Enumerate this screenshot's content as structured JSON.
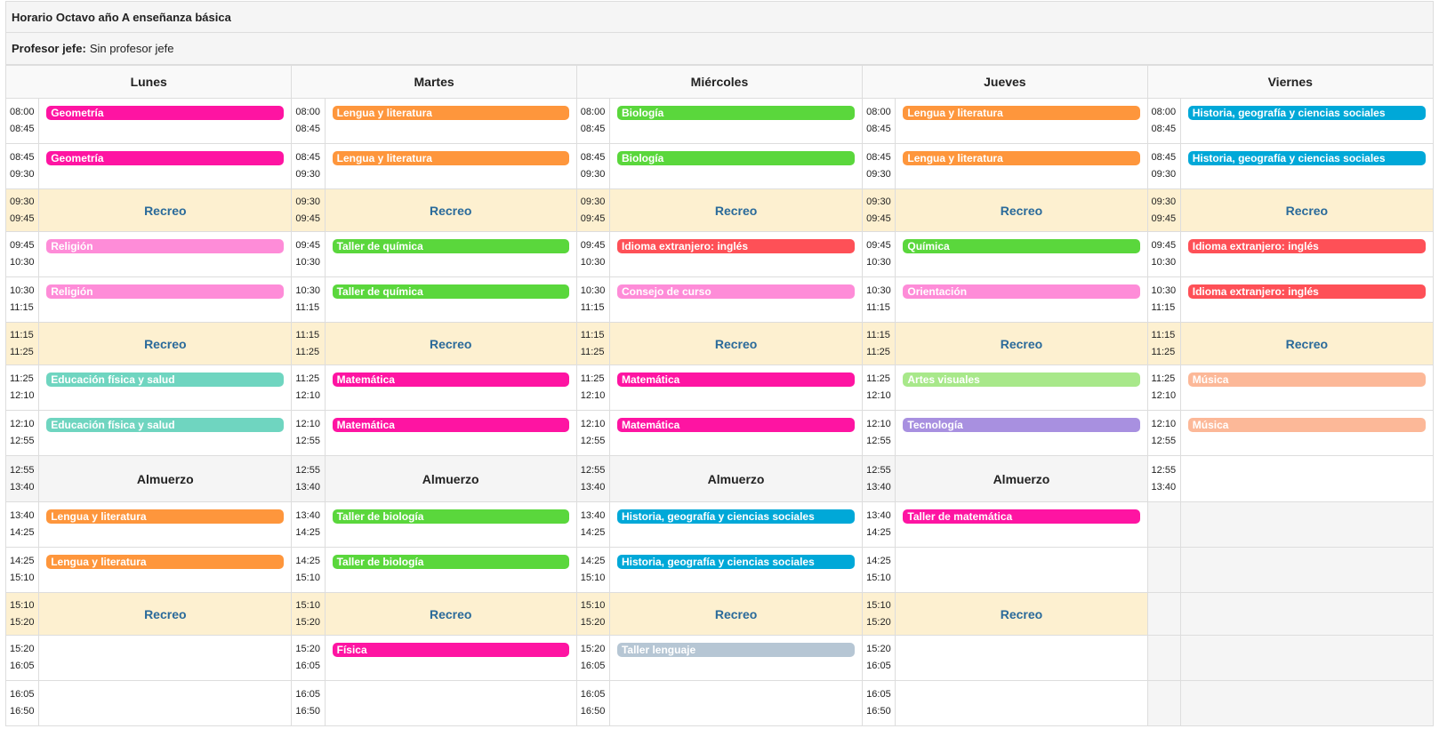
{
  "header": {
    "title": "Horario Octavo año A enseñanza básica",
    "teacher_label": "Profesor jefe:",
    "teacher_value": "Sin profesor jefe"
  },
  "colors": {
    "Geometría": "#fe14a2",
    "Lengua y literatura": "#fe963c",
    "Biología": "#5ad73c",
    "Historia, geografía y ciencias sociales": "#00a8d8",
    "Taller de química": "#5ad73c",
    "Idioma extranjero: inglés": "#fe5057",
    "Química": "#5ad73c",
    "Religión": "#fe8cd8",
    "Consejo de curso": "#fe8cd8",
    "Orientación": "#fe8cd8",
    "Educación física y salud": "#6fd5c0",
    "Matemática": "#fe14a2",
    "Artes visuales": "#a8e88a",
    "Música": "#fcb898",
    "Tecnología": "#a890e0",
    "Taller de biología": "#5ad73c",
    "Taller de matemática": "#fe14a2",
    "Física": "#fe14a2",
    "Taller lenguaje": "#b6c6d4"
  },
  "days": [
    {
      "name": "Lunes",
      "slots": [
        {
          "start": "08:00",
          "end": "08:45",
          "kind": "class",
          "subject": "Geometría"
        },
        {
          "start": "08:45",
          "end": "09:30",
          "kind": "class",
          "subject": "Geometría"
        },
        {
          "start": "09:30",
          "end": "09:45",
          "kind": "break",
          "label": "Recreo"
        },
        {
          "start": "09:45",
          "end": "10:30",
          "kind": "class",
          "subject": "Religión"
        },
        {
          "start": "10:30",
          "end": "11:15",
          "kind": "class",
          "subject": "Religión"
        },
        {
          "start": "11:15",
          "end": "11:25",
          "kind": "break",
          "label": "Recreo"
        },
        {
          "start": "11:25",
          "end": "12:10",
          "kind": "class",
          "subject": "Educación física y salud"
        },
        {
          "start": "12:10",
          "end": "12:55",
          "kind": "class",
          "subject": "Educación física y salud"
        },
        {
          "start": "12:55",
          "end": "13:40",
          "kind": "lunch",
          "label": "Almuerzo"
        },
        {
          "start": "13:40",
          "end": "14:25",
          "kind": "class",
          "subject": "Lengua y literatura"
        },
        {
          "start": "14:25",
          "end": "15:10",
          "kind": "class",
          "subject": "Lengua y literatura"
        },
        {
          "start": "15:10",
          "end": "15:20",
          "kind": "break",
          "label": "Recreo"
        },
        {
          "start": "15:20",
          "end": "16:05",
          "kind": "empty"
        },
        {
          "start": "16:05",
          "end": "16:50",
          "kind": "empty"
        }
      ]
    },
    {
      "name": "Martes",
      "slots": [
        {
          "start": "08:00",
          "end": "08:45",
          "kind": "class",
          "subject": "Lengua y literatura"
        },
        {
          "start": "08:45",
          "end": "09:30",
          "kind": "class",
          "subject": "Lengua y literatura"
        },
        {
          "start": "09:30",
          "end": "09:45",
          "kind": "break",
          "label": "Recreo"
        },
        {
          "start": "09:45",
          "end": "10:30",
          "kind": "class",
          "subject": "Taller de química"
        },
        {
          "start": "10:30",
          "end": "11:15",
          "kind": "class",
          "subject": "Taller de química"
        },
        {
          "start": "11:15",
          "end": "11:25",
          "kind": "break",
          "label": "Recreo"
        },
        {
          "start": "11:25",
          "end": "12:10",
          "kind": "class",
          "subject": "Matemática"
        },
        {
          "start": "12:10",
          "end": "12:55",
          "kind": "class",
          "subject": "Matemática"
        },
        {
          "start": "12:55",
          "end": "13:40",
          "kind": "lunch",
          "label": "Almuerzo"
        },
        {
          "start": "13:40",
          "end": "14:25",
          "kind": "class",
          "subject": "Taller de biología"
        },
        {
          "start": "14:25",
          "end": "15:10",
          "kind": "class",
          "subject": "Taller de biología"
        },
        {
          "start": "15:10",
          "end": "15:20",
          "kind": "break",
          "label": "Recreo"
        },
        {
          "start": "15:20",
          "end": "16:05",
          "kind": "class",
          "subject": "Física"
        },
        {
          "start": "16:05",
          "end": "16:50",
          "kind": "empty"
        }
      ]
    },
    {
      "name": "Miércoles",
      "slots": [
        {
          "start": "08:00",
          "end": "08:45",
          "kind": "class",
          "subject": "Biología"
        },
        {
          "start": "08:45",
          "end": "09:30",
          "kind": "class",
          "subject": "Biología"
        },
        {
          "start": "09:30",
          "end": "09:45",
          "kind": "break",
          "label": "Recreo"
        },
        {
          "start": "09:45",
          "end": "10:30",
          "kind": "class",
          "subject": "Idioma extranjero: inglés"
        },
        {
          "start": "10:30",
          "end": "11:15",
          "kind": "class",
          "subject": "Consejo de curso"
        },
        {
          "start": "11:15",
          "end": "11:25",
          "kind": "break",
          "label": "Recreo"
        },
        {
          "start": "11:25",
          "end": "12:10",
          "kind": "class",
          "subject": "Matemática"
        },
        {
          "start": "12:10",
          "end": "12:55",
          "kind": "class",
          "subject": "Matemática"
        },
        {
          "start": "12:55",
          "end": "13:40",
          "kind": "lunch",
          "label": "Almuerzo"
        },
        {
          "start": "13:40",
          "end": "14:25",
          "kind": "class",
          "subject": "Historia, geografía y ciencias sociales"
        },
        {
          "start": "14:25",
          "end": "15:10",
          "kind": "class",
          "subject": "Historia, geografía y ciencias sociales"
        },
        {
          "start": "15:10",
          "end": "15:20",
          "kind": "break",
          "label": "Recreo"
        },
        {
          "start": "15:20",
          "end": "16:05",
          "kind": "class",
          "subject": "Taller lenguaje"
        },
        {
          "start": "16:05",
          "end": "16:50",
          "kind": "empty"
        }
      ]
    },
    {
      "name": "Jueves",
      "slots": [
        {
          "start": "08:00",
          "end": "08:45",
          "kind": "class",
          "subject": "Lengua y literatura"
        },
        {
          "start": "08:45",
          "end": "09:30",
          "kind": "class",
          "subject": "Lengua y literatura"
        },
        {
          "start": "09:30",
          "end": "09:45",
          "kind": "break",
          "label": "Recreo"
        },
        {
          "start": "09:45",
          "end": "10:30",
          "kind": "class",
          "subject": "Química"
        },
        {
          "start": "10:30",
          "end": "11:15",
          "kind": "class",
          "subject": "Orientación"
        },
        {
          "start": "11:15",
          "end": "11:25",
          "kind": "break",
          "label": "Recreo"
        },
        {
          "start": "11:25",
          "end": "12:10",
          "kind": "class",
          "subject": "Artes visuales"
        },
        {
          "start": "12:10",
          "end": "12:55",
          "kind": "class",
          "subject": "Tecnología"
        },
        {
          "start": "12:55",
          "end": "13:40",
          "kind": "lunch",
          "label": "Almuerzo"
        },
        {
          "start": "13:40",
          "end": "14:25",
          "kind": "class",
          "subject": "Taller de matemática"
        },
        {
          "start": "14:25",
          "end": "15:10",
          "kind": "empty"
        },
        {
          "start": "15:10",
          "end": "15:20",
          "kind": "break",
          "label": "Recreo"
        },
        {
          "start": "15:20",
          "end": "16:05",
          "kind": "empty"
        },
        {
          "start": "16:05",
          "end": "16:50",
          "kind": "empty"
        }
      ]
    },
    {
      "name": "Viernes",
      "slots": [
        {
          "start": "08:00",
          "end": "08:45",
          "kind": "class",
          "subject": "Historia, geografía y ciencias sociales"
        },
        {
          "start": "08:45",
          "end": "09:30",
          "kind": "class",
          "subject": "Historia, geografía y ciencias sociales"
        },
        {
          "start": "09:30",
          "end": "09:45",
          "kind": "break",
          "label": "Recreo"
        },
        {
          "start": "09:45",
          "end": "10:30",
          "kind": "class",
          "subject": "Idioma extranjero: inglés"
        },
        {
          "start": "10:30",
          "end": "11:15",
          "kind": "class",
          "subject": "Idioma extranjero: inglés"
        },
        {
          "start": "11:15",
          "end": "11:25",
          "kind": "break",
          "label": "Recreo"
        },
        {
          "start": "11:25",
          "end": "12:10",
          "kind": "class",
          "subject": "Música"
        },
        {
          "start": "12:10",
          "end": "12:55",
          "kind": "class",
          "subject": "Música"
        },
        {
          "start": "12:55",
          "end": "13:40",
          "kind": "empty"
        },
        {
          "start": "",
          "end": "",
          "kind": "blank"
        },
        {
          "start": "",
          "end": "",
          "kind": "blank"
        },
        {
          "start": "",
          "end": "",
          "kind": "blank"
        },
        {
          "start": "",
          "end": "",
          "kind": "blank"
        },
        {
          "start": "",
          "end": "",
          "kind": "blank"
        }
      ]
    }
  ]
}
